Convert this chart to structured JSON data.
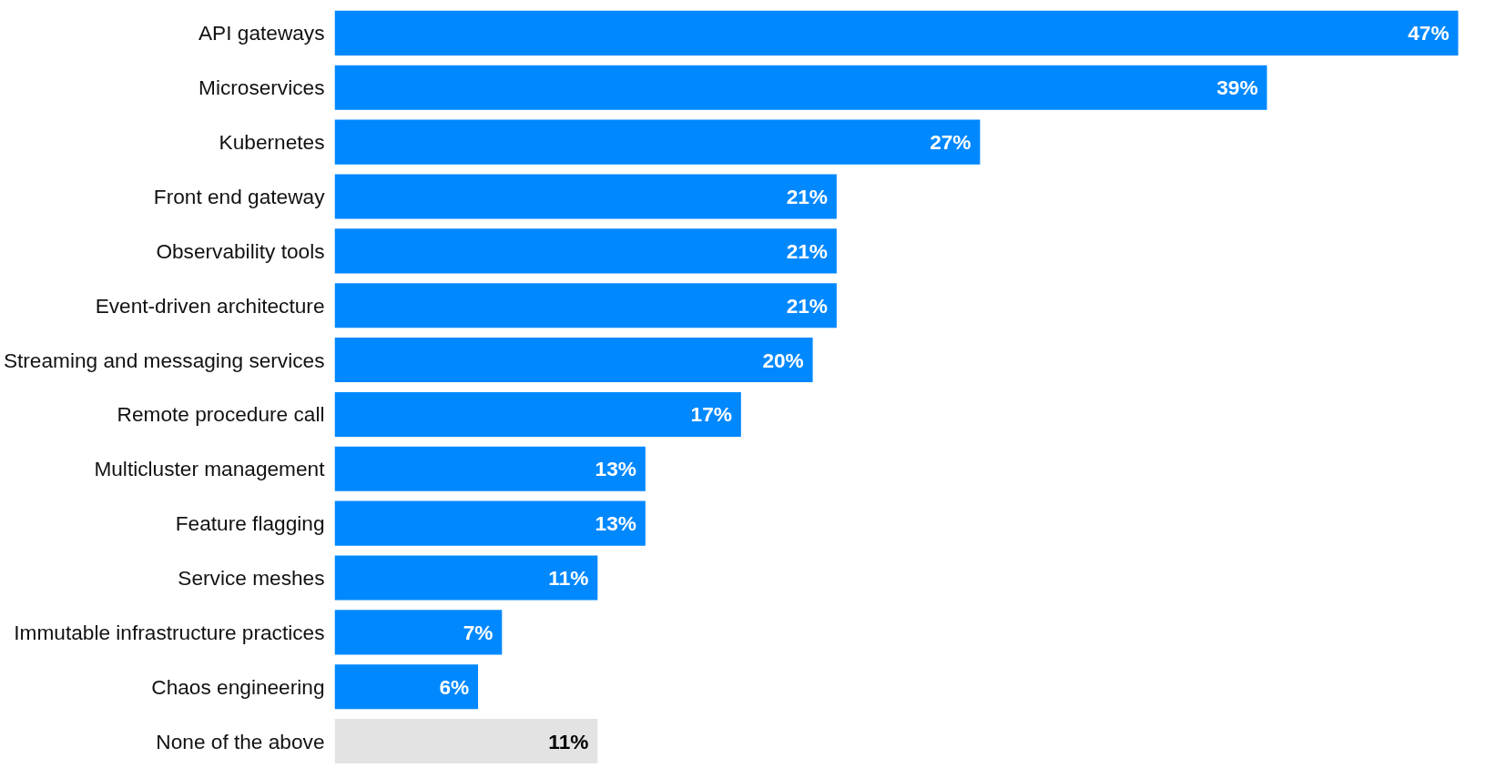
{
  "chart_data": {
    "type": "bar",
    "orientation": "horizontal",
    "categories": [
      "API gateways",
      "Microservices",
      "Kubernetes",
      "Front end gateway",
      "Observability tools",
      "Event-driven architecture",
      "Streaming and messaging services",
      "Remote procedure call",
      "Multicluster management",
      "Feature flagging",
      "Service meshes",
      "Immutable infrastructure practices",
      "Chaos engineering",
      "None of the above"
    ],
    "values": [
      47,
      39,
      27,
      21,
      21,
      21,
      20,
      17,
      13,
      13,
      11,
      7,
      6,
      11
    ],
    "value_labels": [
      "47%",
      "39%",
      "27%",
      "21%",
      "21%",
      "21%",
      "20%",
      "17%",
      "13%",
      "13%",
      "11%",
      "7%",
      "6%",
      "11%"
    ],
    "colors": [
      "#0088ff",
      "#0088ff",
      "#0088ff",
      "#0088ff",
      "#0088ff",
      "#0088ff",
      "#0088ff",
      "#0088ff",
      "#0088ff",
      "#0088ff",
      "#0088ff",
      "#0088ff",
      "#0088ff",
      "#e3e3e3"
    ]
  }
}
